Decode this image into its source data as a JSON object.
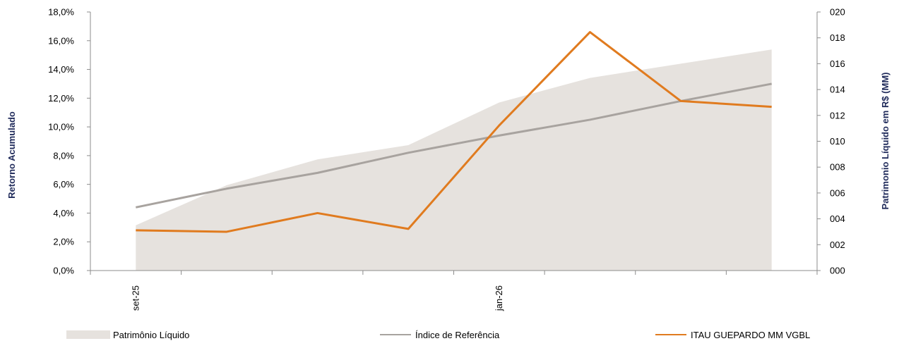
{
  "chart_data": {
    "type": "line",
    "x": [
      "set-25",
      "",
      "",
      "",
      "jan-26",
      "",
      "",
      ""
    ],
    "y_left": {
      "label": "Retorno Acumulado",
      "ticks": [
        "0,0%",
        "2,0%",
        "4,0%",
        "6,0%",
        "8,0%",
        "10,0%",
        "12,0%",
        "14,0%",
        "16,0%",
        "18,0%"
      ],
      "ylim": [
        0,
        18
      ]
    },
    "y_right": {
      "label": "Patrimonio Líquido em R$ (MM)",
      "ticks": [
        "000",
        "002",
        "004",
        "006",
        "008",
        "010",
        "012",
        "014",
        "016",
        "018",
        "020"
      ],
      "ylim": [
        0,
        20
      ]
    },
    "series": [
      {
        "name": "Patrimônio Líquido",
        "kind": "area",
        "axis": "right",
        "color": "#e6e2de",
        "values": [
          3.5,
          6.6,
          8.6,
          9.7,
          13.0,
          14.9,
          16.0,
          17.1
        ]
      },
      {
        "name": "Índice de Referência",
        "kind": "line",
        "axis": "left",
        "color": "#a8a39f",
        "values": [
          4.4,
          5.7,
          6.8,
          8.2,
          9.4,
          10.5,
          11.8,
          13.0
        ]
      },
      {
        "name": "ITAU GUEPARDO MM VGBL",
        "kind": "line",
        "axis": "left",
        "color": "#e07b1f",
        "values": [
          2.8,
          2.7,
          4.0,
          2.9,
          10.1,
          16.6,
          11.8,
          11.4
        ]
      }
    ],
    "tick_labels_x": [
      "set-25",
      "jan-26"
    ],
    "grid": false,
    "legend_position": "bottom"
  }
}
